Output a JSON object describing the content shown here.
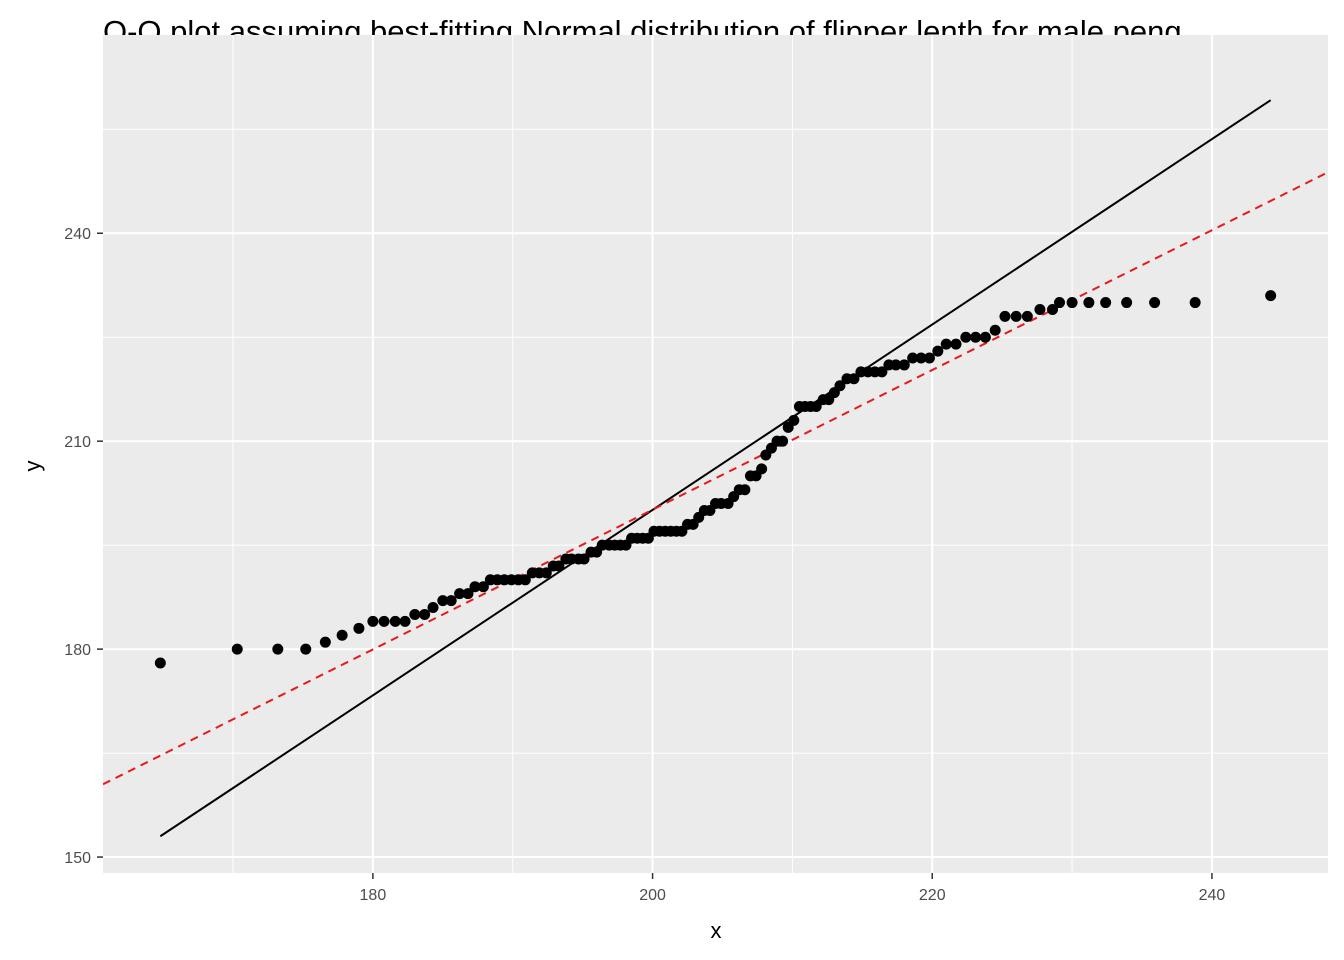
{
  "chart_data": {
    "type": "scatter",
    "title": "Q-Q plot assuming best-fitting Normal distribution of flipper lenth for male peng",
    "x_label": "x",
    "y_label": "y",
    "xlim": [
      160.7,
      248.3
    ],
    "ylim": [
      147.7,
      268.6
    ],
    "xticks": [
      180,
      200,
      220,
      240
    ],
    "yticks": [
      150,
      180,
      210,
      240
    ],
    "grid": true,
    "point_color": "#000000",
    "series": [
      {
        "color": "#000000",
        "x": [
          164.8,
          170.3,
          173.2,
          175.2,
          176.6,
          177.8,
          179.0,
          180.0,
          180.8,
          181.6,
          182.3,
          183.0,
          183.7,
          184.3,
          185.0,
          185.6,
          186.2,
          186.8,
          187.3,
          187.9,
          188.4,
          188.9,
          189.4,
          189.9,
          190.4,
          190.9,
          191.4,
          191.9,
          192.4,
          192.9,
          193.3,
          193.8,
          194.2,
          194.7,
          195.1,
          195.6,
          196.0,
          196.4,
          196.9,
          197.3,
          197.7,
          198.1,
          198.5,
          198.9,
          199.3,
          199.7,
          200.1,
          200.5,
          200.9,
          201.3,
          201.7,
          202.1,
          202.5,
          202.9,
          203.3,
          203.7,
          204.1,
          204.5,
          204.9,
          205.4,
          205.8,
          206.2,
          206.6,
          207.0,
          207.4,
          207.8,
          208.1,
          208.5,
          208.9,
          209.3,
          209.7,
          210.1,
          210.5,
          210.9,
          211.3,
          211.7,
          212.2,
          212.6,
          213.0,
          213.4,
          213.9,
          214.4,
          214.9,
          215.4,
          215.9,
          216.4,
          216.9,
          217.4,
          218.0,
          218.6,
          219.2,
          219.8,
          220.4,
          221.0,
          221.7,
          222.4,
          223.1,
          223.8,
          224.5,
          225.2,
          226.0,
          226.8,
          227.7,
          228.6,
          229.1,
          230.0,
          231.2,
          232.4,
          233.9,
          235.9,
          238.8,
          244.2
        ],
        "values": [
          178,
          180,
          180,
          180,
          181,
          182,
          183,
          184,
          184,
          184,
          184,
          185,
          185,
          186,
          187,
          187,
          188,
          188,
          189,
          189,
          190,
          190,
          190,
          190,
          190,
          190,
          191,
          191,
          191,
          192,
          192,
          193,
          193,
          193,
          193,
          194,
          194,
          195,
          195,
          195,
          195,
          195,
          196,
          196,
          196,
          196,
          197,
          197,
          197,
          197,
          197,
          197,
          198,
          198,
          199,
          200,
          200,
          201,
          201,
          201,
          202,
          203,
          203,
          205,
          205,
          206,
          208,
          209,
          210,
          210,
          212,
          213,
          215,
          215,
          215,
          215,
          216,
          216,
          217,
          218,
          219,
          219,
          220,
          220,
          220,
          220,
          221,
          221,
          221,
          222,
          222,
          222,
          223,
          224,
          224,
          225,
          225,
          225,
          226,
          228,
          228,
          228,
          229,
          229,
          230,
          230,
          230,
          230,
          230,
          230,
          230,
          231
        ]
      }
    ],
    "lines": [
      {
        "color": "#000000",
        "dash": false,
        "x": [
          164.8,
          244.2
        ],
        "y": [
          153.0,
          259.2
        ]
      },
      {
        "color": "#e41a1c",
        "dash": true,
        "x": [
          160.7,
          248.3
        ],
        "y": [
          160.5,
          248.8
        ]
      }
    ]
  }
}
